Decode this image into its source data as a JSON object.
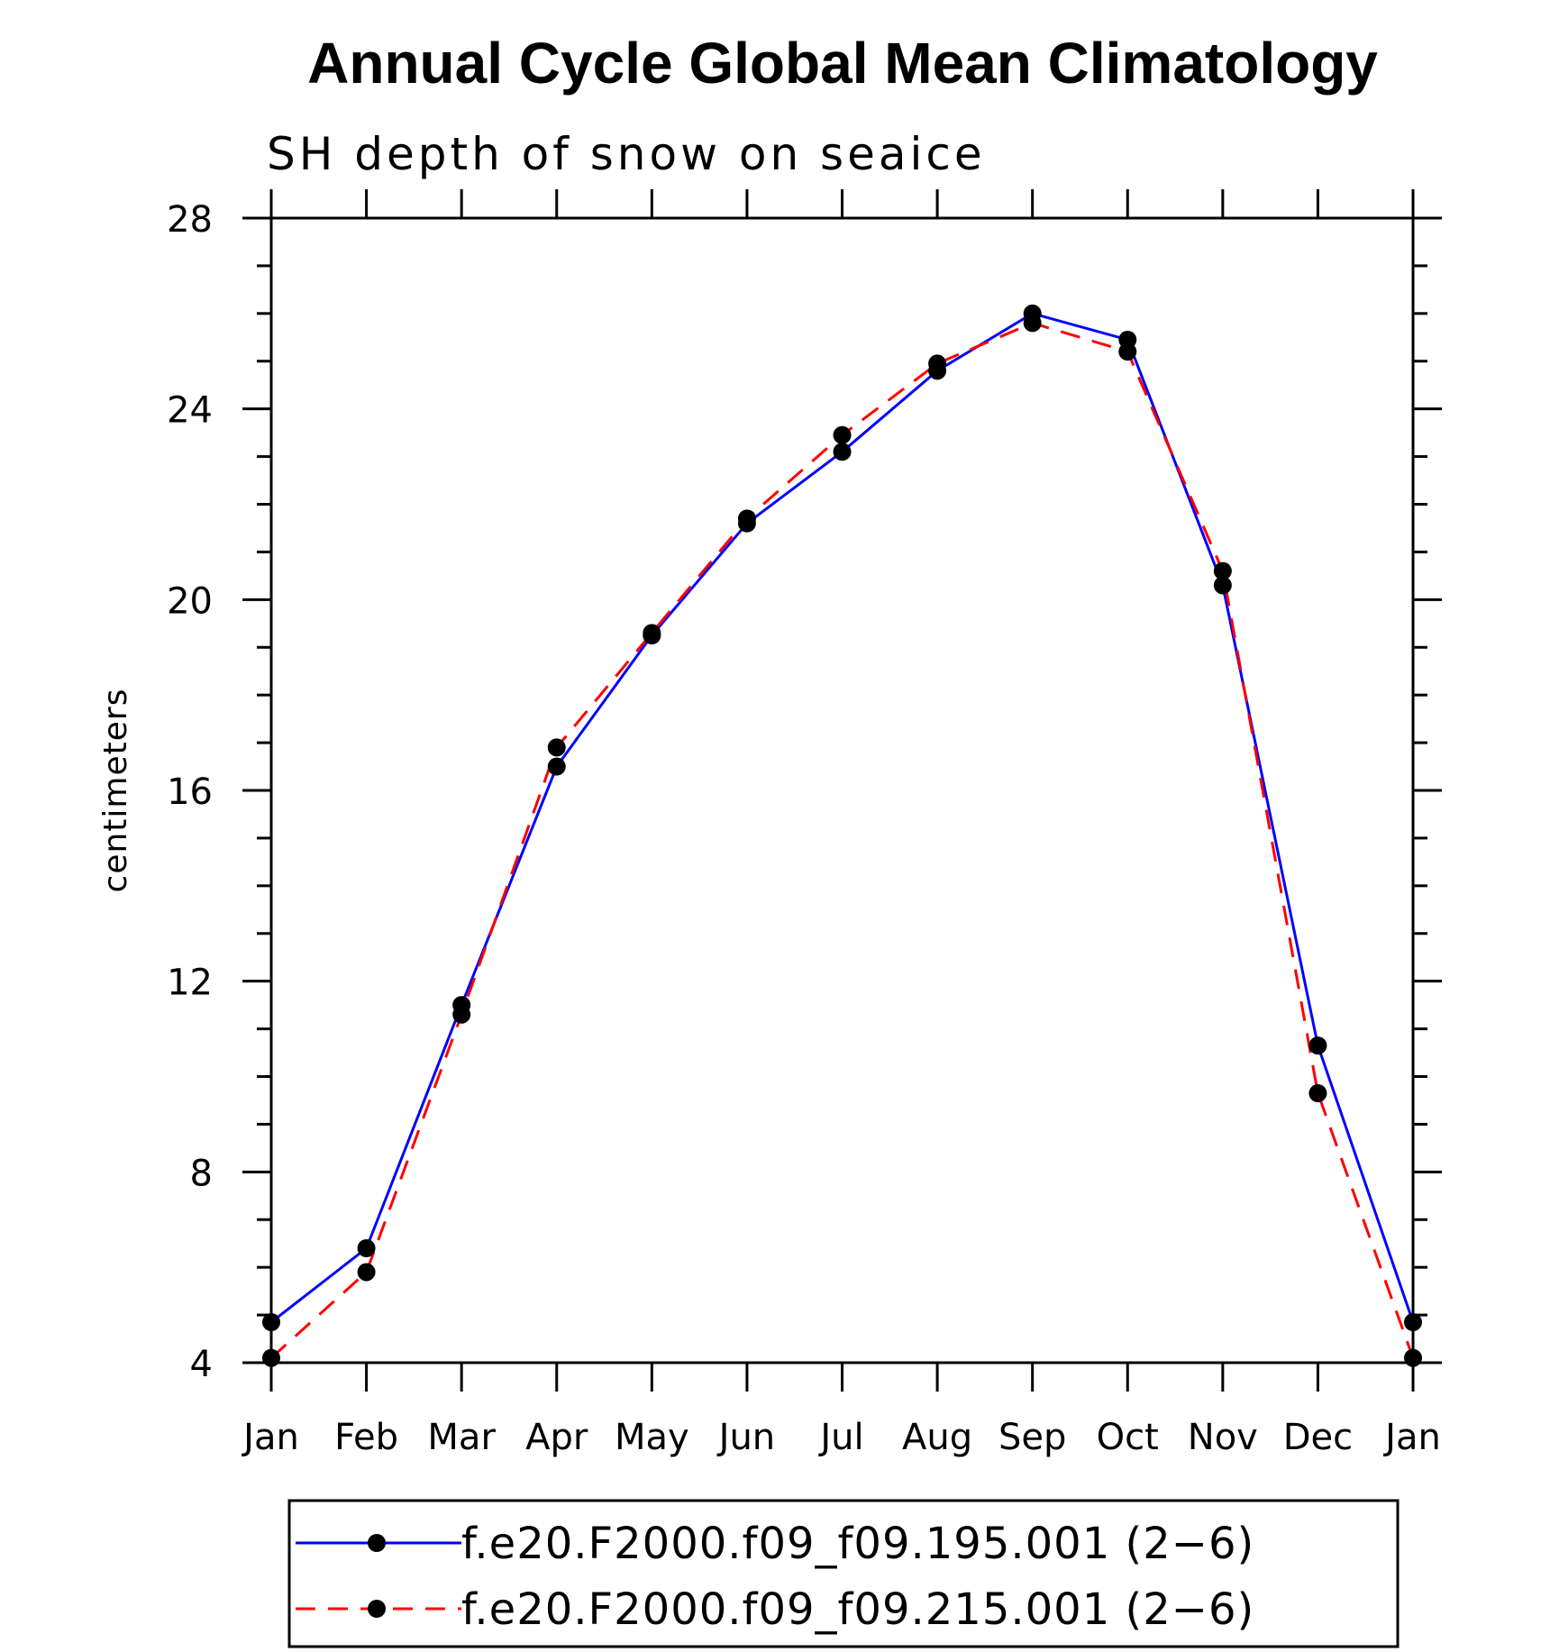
{
  "chart_data": {
    "type": "line",
    "title": "Annual Cycle Global Mean Climatology",
    "subtitle": "SH depth of snow on seaice",
    "ylabel": "centimeters",
    "xlabel": "",
    "categories": [
      "Jan",
      "Feb",
      "Mar",
      "Apr",
      "May",
      "Jun",
      "Jul",
      "Aug",
      "Sep",
      "Oct",
      "Nov",
      "Dec",
      "Jan"
    ],
    "ylim": [
      4,
      28
    ],
    "yticks": [
      "4",
      "8",
      "12",
      "16",
      "20",
      "24",
      "28"
    ],
    "grid": false,
    "legend_position": "bottom",
    "series": [
      {
        "name": "f.e20.F2000.f09_f09.195.001 (2−6)",
        "color": "#0000ff",
        "dash": "solid",
        "values": [
          4.85,
          6.4,
          11.5,
          16.5,
          19.25,
          21.6,
          23.1,
          24.8,
          26.0,
          25.45,
          20.3,
          10.65,
          4.85
        ]
      },
      {
        "name": "f.e20.F2000.f09_f09.215.001 (2−6)",
        "color": "#ff0000",
        "dash": "dashed",
        "values": [
          4.1,
          5.9,
          11.3,
          16.9,
          19.3,
          21.7,
          23.45,
          24.95,
          25.8,
          25.2,
          20.6,
          9.65,
          4.1
        ]
      }
    ]
  }
}
